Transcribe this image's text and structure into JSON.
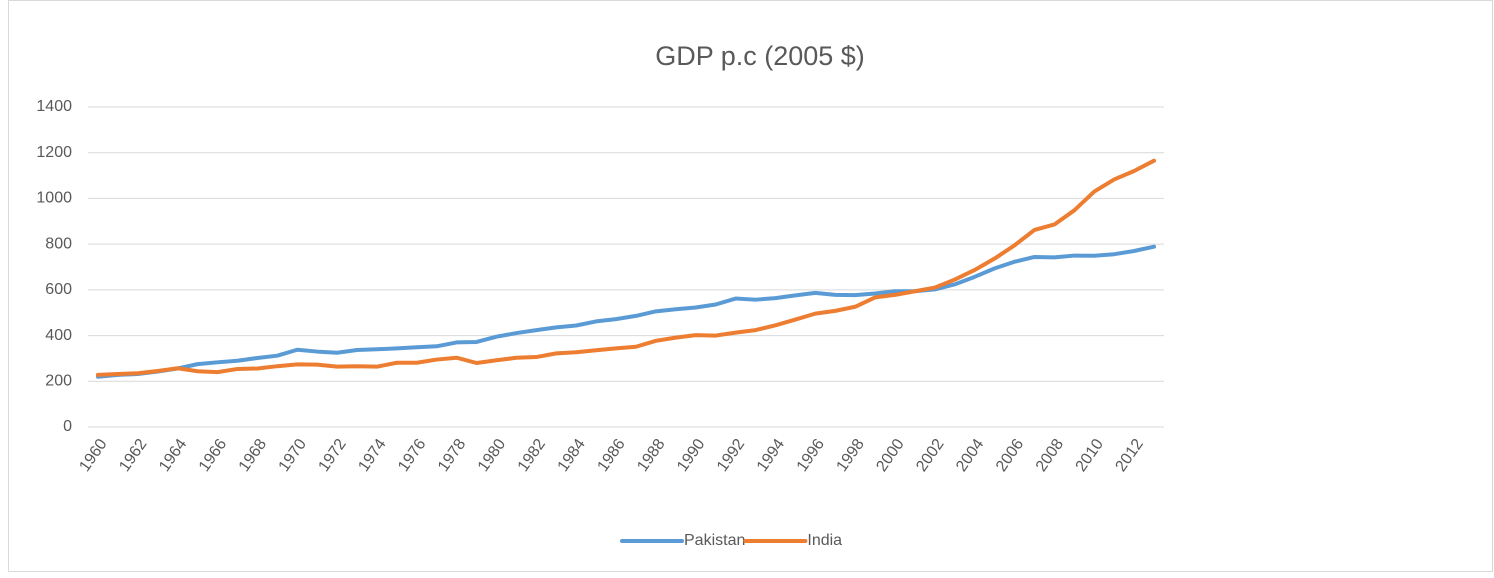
{
  "chart_data": {
    "type": "line",
    "title": "GDP p.c (2005 $)",
    "categories": [
      "1960",
      null,
      "1962",
      null,
      "1964",
      null,
      "1966",
      null,
      "1968",
      null,
      "1970",
      null,
      "1972",
      null,
      "1974",
      null,
      "1976",
      null,
      "1978",
      null,
      "1980",
      null,
      "1982",
      null,
      "1984",
      null,
      "1986",
      null,
      "1988",
      null,
      "1990",
      null,
      "1992",
      null,
      "1994",
      null,
      "1996",
      null,
      "1998",
      null,
      "2000",
      null,
      "2002",
      null,
      "2004",
      null,
      "2006",
      null,
      "2008",
      null,
      "2010",
      null,
      "2012",
      null
    ],
    "series": [
      {
        "name": "Pakistan",
        "color": "#5b9bd5",
        "values": [
          220,
          228,
          232,
          243,
          256,
          275,
          283,
          290,
          302,
          312,
          338,
          330,
          325,
          337,
          340,
          344,
          349,
          353,
          370,
          372,
          395,
          411,
          424,
          436,
          444,
          462,
          472,
          486,
          506,
          515,
          523,
          536,
          562,
          557,
          564,
          576,
          587,
          578,
          577,
          584,
          594,
          594,
          602,
          624,
          657,
          694,
          723,
          744,
          742,
          750,
          749,
          756,
          770,
          789
        ]
      },
      {
        "name": "India",
        "color": "#ed7d31",
        "values": [
          228,
          232,
          235,
          245,
          257,
          244,
          240,
          254,
          256,
          266,
          274,
          273,
          264,
          266,
          264,
          281,
          281,
          295,
          303,
          280,
          292,
          303,
          306,
          322,
          327,
          336,
          344,
          351,
          377,
          391,
          402,
          400,
          413,
          424,
          445,
          470,
          496,
          508,
          526,
          567,
          578,
          594,
          610,
          645,
          687,
          737,
          795,
          862,
          886,
          948,
          1030,
          1083,
          1120,
          1165
        ]
      }
    ],
    "ylim": [
      0,
      1400
    ],
    "yticks": [
      0,
      200,
      400,
      600,
      800,
      1000,
      1200,
      1400
    ],
    "grid": true,
    "legend": "bottom"
  }
}
